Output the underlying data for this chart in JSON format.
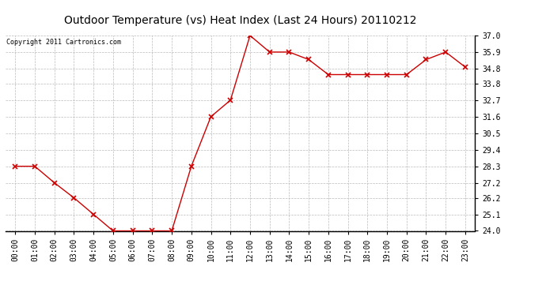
{
  "title": "Outdoor Temperature (vs) Heat Index (Last 24 Hours) 20110212",
  "copyright_text": "Copyright 2011 Cartronics.com",
  "x_labels": [
    "00:00",
    "01:00",
    "02:00",
    "03:00",
    "04:00",
    "05:00",
    "06:00",
    "07:00",
    "08:00",
    "09:00",
    "10:00",
    "11:00",
    "12:00",
    "13:00",
    "14:00",
    "15:00",
    "16:00",
    "17:00",
    "18:00",
    "19:00",
    "20:00",
    "21:00",
    "22:00",
    "23:00"
  ],
  "y_values": [
    28.3,
    28.3,
    27.2,
    26.2,
    25.1,
    24.0,
    24.0,
    24.0,
    24.0,
    28.3,
    31.6,
    32.7,
    37.0,
    35.9,
    35.9,
    35.4,
    34.4,
    34.4,
    34.4,
    34.4,
    34.4,
    35.4,
    35.9,
    34.9
  ],
  "ylim_min": 24.0,
  "ylim_max": 37.0,
  "y_ticks": [
    24.0,
    25.1,
    26.2,
    27.2,
    28.3,
    29.4,
    30.5,
    31.6,
    32.7,
    33.8,
    34.8,
    35.9,
    37.0
  ],
  "line_color": "#cc0000",
  "marker": "x",
  "marker_color": "#cc0000",
  "marker_size": 4,
  "bg_color": "#ffffff",
  "grid_color": "#bbbbbb",
  "title_fontsize": 10,
  "tick_fontsize": 7,
  "copyright_fontsize": 6
}
